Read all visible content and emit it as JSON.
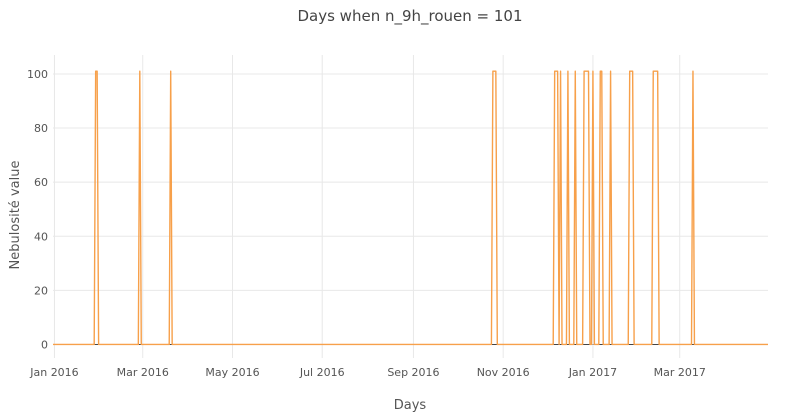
{
  "chart_data": {
    "type": "line",
    "title": "Days when n_9h_rouen = 101",
    "xlabel": "Days",
    "ylabel": "Nebulosité value",
    "xlim": [
      "2015-12-31",
      "2017-04-30"
    ],
    "ylim": [
      -5,
      107
    ],
    "x_ticks": [
      {
        "label": "Jan 2016",
        "date": "2016-01-01"
      },
      {
        "label": "Mar 2016",
        "date": "2016-03-01"
      },
      {
        "label": "May 2016",
        "date": "2016-05-01"
      },
      {
        "label": "Jul 2016",
        "date": "2016-07-01"
      },
      {
        "label": "Sep 2016",
        "date": "2016-09-01"
      },
      {
        "label": "Nov 2016",
        "date": "2016-11-01"
      },
      {
        "label": "Jan 2017",
        "date": "2017-01-01"
      },
      {
        "label": "Mar 2017",
        "date": "2017-03-01"
      }
    ],
    "y_ticks": [
      0,
      20,
      40,
      60,
      80,
      100
    ],
    "grid": true,
    "line_color": "#f7a04a",
    "series": [
      {
        "spikes": [
          {
            "start": "2016-01-29",
            "end": "2016-01-30"
          },
          {
            "start": "2016-02-28",
            "end": "2016-02-28"
          },
          {
            "start": "2016-03-20",
            "end": "2016-03-20"
          },
          {
            "start": "2016-10-25",
            "end": "2016-10-27"
          },
          {
            "start": "2016-12-06",
            "end": "2016-12-08"
          },
          {
            "start": "2016-12-10",
            "end": "2016-12-10"
          },
          {
            "start": "2016-12-15",
            "end": "2016-12-15"
          },
          {
            "start": "2016-12-20",
            "end": "2016-12-20"
          },
          {
            "start": "2016-12-26",
            "end": "2016-12-29"
          },
          {
            "start": "2017-01-01",
            "end": "2017-01-01"
          },
          {
            "start": "2017-01-06",
            "end": "2017-01-07"
          },
          {
            "start": "2017-01-13",
            "end": "2017-01-13"
          },
          {
            "start": "2017-01-26",
            "end": "2017-01-28"
          },
          {
            "start": "2017-02-11",
            "end": "2017-02-14"
          },
          {
            "start": "2017-03-10",
            "end": "2017-03-10"
          }
        ],
        "baseline": 0,
        "peak": 101,
        "start": "2015-12-31",
        "end": "2017-04-30"
      }
    ]
  }
}
